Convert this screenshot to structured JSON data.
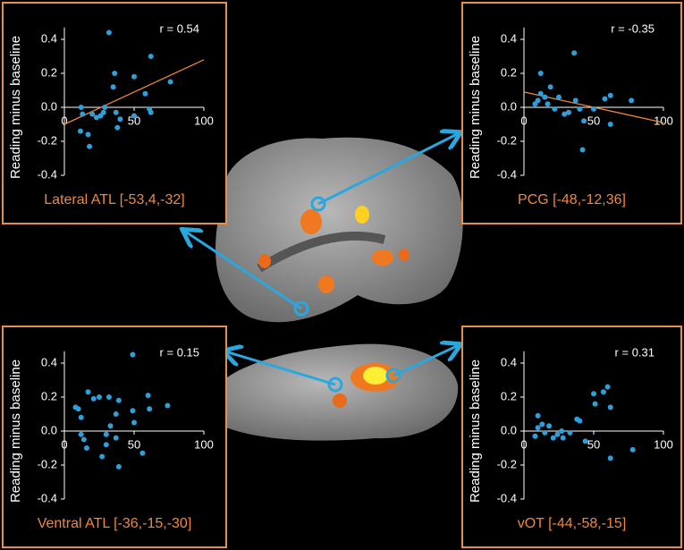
{
  "chart_data": [
    {
      "type": "scatter",
      "title": "Lateral ATL [-53,4,-32]",
      "annotation": "r = 0.54",
      "ylabel": "Reading minus baseline",
      "color": "#2e9fd8",
      "x": [
        11.5,
        12,
        17,
        18,
        13,
        20,
        23,
        26,
        28,
        29,
        32,
        35,
        36,
        37,
        38,
        40,
        50,
        50,
        58,
        62,
        61,
        62,
        76
      ],
      "values": [
        -0.14,
        0,
        -0.16,
        -0.23,
        -0.04,
        -0.04,
        -0.06,
        -0.05,
        -0.03,
        0,
        0.44,
        0.12,
        0.2,
        -0.03,
        -0.12,
        -0.07,
        0.18,
        -0.05,
        0.08,
        0.3,
        -0.01,
        -0.03,
        0.15
      ],
      "fit": {
        "x": [
          0,
          100
        ],
        "values": [
          -0.1,
          0.28
        ],
        "color": "#f0883a"
      },
      "xlim": [
        0,
        100
      ],
      "ylim": [
        -0.4,
        0.47
      ],
      "xticks": [
        0,
        50,
        100
      ],
      "yticks": [
        -0.4,
        -0.2,
        {
          "value": 0,
          "label": "0.0"
        },
        0.2,
        0.4
      ]
    },
    {
      "type": "scatter",
      "title": "PCG [-48,-12,36]",
      "annotation": "r = -0.35",
      "ylabel": "Reading minus baseline",
      "color": "#2e9fd8",
      "x": [
        12,
        12,
        15,
        10,
        8,
        19,
        22,
        25,
        29,
        32,
        36,
        37,
        40,
        43,
        42,
        50,
        58,
        62,
        62,
        77,
        17
      ],
      "values": [
        0.2,
        0.08,
        0.06,
        0.04,
        0.02,
        0.12,
        -0.01,
        0.06,
        -0.04,
        -0.03,
        0.32,
        0.04,
        -0.01,
        -0.08,
        -0.25,
        -0.01,
        0.05,
        0.07,
        -0.1,
        0.04,
        0.02
      ],
      "fit": {
        "x": [
          0,
          100
        ],
        "values": [
          0.09,
          -0.09
        ],
        "color": "#f0883a"
      },
      "xlim": [
        0,
        100
      ],
      "ylim": [
        -0.4,
        0.47
      ],
      "xticks": [
        0,
        50,
        100
      ],
      "yticks": [
        -0.4,
        -0.2,
        {
          "value": 0,
          "label": "0.0"
        },
        0.2,
        0.4
      ]
    },
    {
      "type": "scatter",
      "title": "Ventral ATL [-36,-15,-30]",
      "annotation": "r = 0.15",
      "ylabel": "Reading minus baseline",
      "color": "#2e9fd8",
      "x": [
        8,
        10,
        12,
        12,
        14,
        16,
        17,
        21,
        25,
        30,
        32,
        33,
        37,
        37,
        39,
        39,
        49,
        49,
        50,
        56,
        60,
        61,
        74,
        30,
        27
      ],
      "values": [
        0.14,
        0.13,
        0.08,
        -0.02,
        -0.05,
        -0.1,
        0.23,
        0.19,
        0.2,
        -0.08,
        0.2,
        0.03,
        -0.04,
        0.1,
        0.18,
        -0.21,
        0.45,
        0.12,
        0.05,
        -0.13,
        0.21,
        0.13,
        0.15,
        -0.02,
        -0.15
      ],
      "xlim": [
        0,
        100
      ],
      "ylim": [
        -0.4,
        0.47
      ],
      "xticks": [
        0,
        50,
        100
      ],
      "yticks": [
        -0.4,
        -0.2,
        {
          "value": 0,
          "label": "0.0"
        },
        0.2,
        0.4
      ]
    },
    {
      "type": "scatter",
      "title": "vOT [-44,-58,-15]",
      "annotation": "r = 0.31",
      "ylabel": "Reading minus baseline",
      "color": "#2e9fd8",
      "x": [
        10,
        10,
        13,
        15,
        18,
        21,
        24,
        27,
        28,
        33,
        38,
        40,
        44,
        50,
        51,
        57,
        60,
        62,
        62,
        78,
        8
      ],
      "values": [
        0.09,
        0.02,
        0.04,
        -0.01,
        0.03,
        -0.04,
        -0.02,
        0,
        -0.04,
        -0.01,
        0.07,
        0.06,
        -0.06,
        0.22,
        0.16,
        0.23,
        0.26,
        0.14,
        -0.16,
        -0.11,
        -0.03
      ],
      "xlim": [
        0,
        100
      ],
      "ylim": [
        -0.4,
        0.47
      ],
      "xticks": [
        0,
        50,
        100
      ],
      "yticks": [
        -0.4,
        -0.2,
        {
          "value": 0,
          "label": "0.0"
        },
        0.2,
        0.4
      ]
    }
  ]
}
